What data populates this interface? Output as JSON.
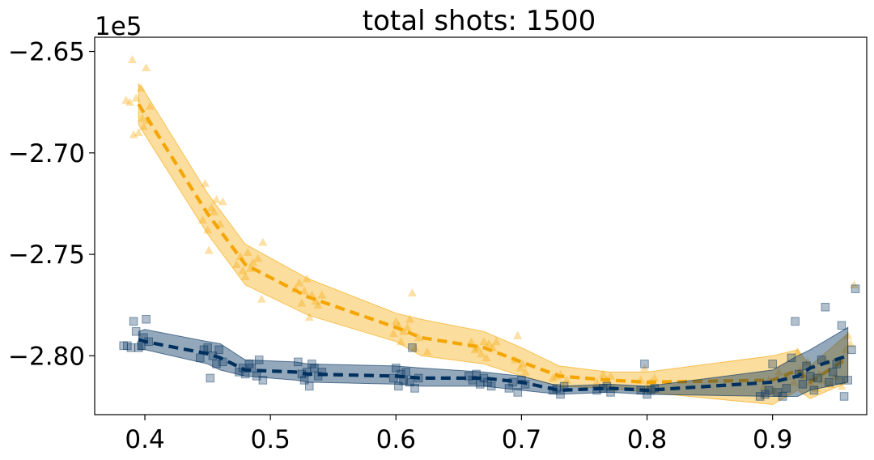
{
  "chart_data": {
    "type": "scatter",
    "title": "total shots: 1500",
    "y_offset_label": "1e5",
    "xlim": [
      0.36,
      0.975
    ],
    "ylim": [
      -2.829,
      -2.643
    ],
    "xticks": [
      0.4,
      0.5,
      0.6,
      0.7,
      0.8,
      0.9
    ],
    "xtick_labels": [
      "0.4",
      "0.5",
      "0.6",
      "0.7",
      "0.8",
      "0.9"
    ],
    "yticks": [
      -2.65,
      -2.7,
      -2.75,
      -2.8
    ],
    "ytick_labels": [
      "−2.65",
      "−2.70",
      "−2.75",
      "−2.80"
    ],
    "grid": false,
    "series": [
      {
        "marker": "triangle",
        "color": "#F5A500",
        "line_points": [
          [
            0.395,
            -2.676
          ],
          [
            0.4,
            -2.681
          ],
          [
            0.45,
            -2.73
          ],
          [
            0.48,
            -2.755
          ],
          [
            0.53,
            -2.771
          ],
          [
            0.6,
            -2.786
          ],
          [
            0.62,
            -2.791
          ],
          [
            0.67,
            -2.796
          ],
          [
            0.7,
            -2.803
          ],
          [
            0.73,
            -2.81
          ],
          [
            0.77,
            -2.812
          ],
          [
            0.8,
            -2.813
          ],
          [
            0.9,
            -2.812
          ],
          [
            0.92,
            -2.807
          ],
          [
            0.93,
            -2.813
          ],
          [
            0.96,
            -2.801
          ]
        ],
        "band_upper": [
          [
            0.395,
            -2.666
          ],
          [
            0.4,
            -2.67
          ],
          [
            0.45,
            -2.72
          ],
          [
            0.48,
            -2.745
          ],
          [
            0.53,
            -2.762
          ],
          [
            0.6,
            -2.779
          ],
          [
            0.62,
            -2.782
          ],
          [
            0.67,
            -2.788
          ],
          [
            0.7,
            -2.796
          ],
          [
            0.73,
            -2.805
          ],
          [
            0.77,
            -2.808
          ],
          [
            0.8,
            -2.808
          ],
          [
            0.9,
            -2.8
          ],
          [
            0.92,
            -2.797
          ],
          [
            0.93,
            -2.805
          ],
          [
            0.96,
            -2.789
          ]
        ],
        "band_lower": [
          [
            0.395,
            -2.686
          ],
          [
            0.4,
            -2.691
          ],
          [
            0.45,
            -2.74
          ],
          [
            0.48,
            -2.765
          ],
          [
            0.53,
            -2.78
          ],
          [
            0.6,
            -2.793
          ],
          [
            0.62,
            -2.8
          ],
          [
            0.67,
            -2.804
          ],
          [
            0.7,
            -2.81
          ],
          [
            0.73,
            -2.815
          ],
          [
            0.77,
            -2.816
          ],
          [
            0.8,
            -2.818
          ],
          [
            0.9,
            -2.824
          ],
          [
            0.92,
            -2.817
          ],
          [
            0.93,
            -2.821
          ],
          [
            0.96,
            -2.813
          ]
        ],
        "points": [
          [
            0.385,
            -2.674
          ],
          [
            0.388,
            -2.675
          ],
          [
            0.39,
            -2.654
          ],
          [
            0.391,
            -2.691
          ],
          [
            0.393,
            -2.673
          ],
          [
            0.395,
            -2.69
          ],
          [
            0.397,
            -2.668
          ],
          [
            0.398,
            -2.683
          ],
          [
            0.399,
            -2.687
          ],
          [
            0.401,
            -2.658
          ],
          [
            0.403,
            -2.684
          ],
          [
            0.404,
            -2.677
          ],
          [
            0.446,
            -2.733
          ],
          [
            0.448,
            -2.715
          ],
          [
            0.45,
            -2.738
          ],
          [
            0.451,
            -2.748
          ],
          [
            0.453,
            -2.727
          ],
          [
            0.455,
            -2.729
          ],
          [
            0.457,
            -2.723
          ],
          [
            0.46,
            -2.735
          ],
          [
            0.462,
            -2.724
          ],
          [
            0.473,
            -2.755
          ],
          [
            0.476,
            -2.751
          ],
          [
            0.478,
            -2.758
          ],
          [
            0.48,
            -2.761
          ],
          [
            0.482,
            -2.749
          ],
          [
            0.484,
            -2.757
          ],
          [
            0.486,
            -2.754
          ],
          [
            0.49,
            -2.752
          ],
          [
            0.493,
            -2.772
          ],
          [
            0.494,
            -2.744
          ],
          [
            0.52,
            -2.767
          ],
          [
            0.523,
            -2.764
          ],
          [
            0.525,
            -2.774
          ],
          [
            0.527,
            -2.768
          ],
          [
            0.529,
            -2.762
          ],
          [
            0.531,
            -2.781
          ],
          [
            0.533,
            -2.77
          ],
          [
            0.536,
            -2.773
          ],
          [
            0.538,
            -2.775
          ],
          [
            0.541,
            -2.77
          ],
          [
            0.598,
            -2.789
          ],
          [
            0.6,
            -2.783
          ],
          [
            0.602,
            -2.785
          ],
          [
            0.604,
            -2.793
          ],
          [
            0.606,
            -2.788
          ],
          [
            0.609,
            -2.786
          ],
          [
            0.611,
            -2.782
          ],
          [
            0.613,
            -2.769
          ],
          [
            0.615,
            -2.796
          ],
          [
            0.618,
            -2.791
          ],
          [
            0.625,
            -2.798
          ],
          [
            0.66,
            -2.793
          ],
          [
            0.663,
            -2.797
          ],
          [
            0.665,
            -2.796
          ],
          [
            0.668,
            -2.799
          ],
          [
            0.67,
            -2.793
          ],
          [
            0.672,
            -2.801
          ],
          [
            0.674,
            -2.794
          ],
          [
            0.677,
            -2.796
          ],
          [
            0.68,
            -2.793
          ],
          [
            0.695,
            -2.802
          ],
          [
            0.697,
            -2.79
          ],
          [
            0.699,
            -2.806
          ],
          [
            0.701,
            -2.804
          ],
          [
            0.703,
            -2.808
          ],
          [
            0.725,
            -2.811
          ],
          [
            0.728,
            -2.81
          ],
          [
            0.731,
            -2.809
          ],
          [
            0.733,
            -2.815
          ],
          [
            0.736,
            -2.812
          ],
          [
            0.76,
            -2.813
          ],
          [
            0.765,
            -2.809
          ],
          [
            0.768,
            -2.812
          ],
          [
            0.771,
            -2.81
          ],
          [
            0.773,
            -2.816
          ],
          [
            0.795,
            -2.812
          ],
          [
            0.798,
            -2.806
          ],
          [
            0.8,
            -2.815
          ],
          [
            0.803,
            -2.813
          ],
          [
            0.806,
            -2.811
          ],
          [
            0.893,
            -2.815
          ],
          [
            0.897,
            -2.812
          ],
          [
            0.901,
            -2.817
          ],
          [
            0.905,
            -2.808
          ],
          [
            0.912,
            -2.81
          ],
          [
            0.917,
            -2.813
          ],
          [
            0.92,
            -2.798
          ],
          [
            0.922,
            -2.807
          ],
          [
            0.925,
            -2.81
          ],
          [
            0.928,
            -2.803
          ],
          [
            0.93,
            -2.813
          ],
          [
            0.932,
            -2.811
          ],
          [
            0.935,
            -2.816
          ],
          [
            0.937,
            -2.809
          ],
          [
            0.94,
            -2.812
          ],
          [
            0.943,
            -2.803
          ],
          [
            0.946,
            -2.814
          ],
          [
            0.95,
            -2.81
          ],
          [
            0.953,
            -2.803
          ],
          [
            0.955,
            -2.815
          ],
          [
            0.958,
            -2.797
          ],
          [
            0.96,
            -2.79
          ],
          [
            0.962,
            -2.794
          ],
          [
            0.965,
            -2.765
          ]
        ]
      },
      {
        "marker": "square",
        "color": "#00305E",
        "line_points": [
          [
            0.395,
            -2.792
          ],
          [
            0.4,
            -2.793
          ],
          [
            0.45,
            -2.799
          ],
          [
            0.46,
            -2.801
          ],
          [
            0.48,
            -2.807
          ],
          [
            0.52,
            -2.808
          ],
          [
            0.53,
            -2.809
          ],
          [
            0.6,
            -2.81
          ],
          [
            0.62,
            -2.811
          ],
          [
            0.67,
            -2.811
          ],
          [
            0.7,
            -2.813
          ],
          [
            0.73,
            -2.817
          ],
          [
            0.77,
            -2.816
          ],
          [
            0.8,
            -2.817
          ],
          [
            0.9,
            -2.813
          ],
          [
            0.92,
            -2.81
          ],
          [
            0.93,
            -2.806
          ],
          [
            0.96,
            -2.8
          ]
        ],
        "band_upper": [
          [
            0.395,
            -2.788
          ],
          [
            0.4,
            -2.787
          ],
          [
            0.45,
            -2.793
          ],
          [
            0.46,
            -2.794
          ],
          [
            0.48,
            -2.802
          ],
          [
            0.52,
            -2.803
          ],
          [
            0.53,
            -2.804
          ],
          [
            0.6,
            -2.805
          ],
          [
            0.62,
            -2.806
          ],
          [
            0.67,
            -2.808
          ],
          [
            0.7,
            -2.81
          ],
          [
            0.73,
            -2.815
          ],
          [
            0.77,
            -2.814
          ],
          [
            0.8,
            -2.815
          ],
          [
            0.9,
            -2.807
          ],
          [
            0.92,
            -2.8
          ],
          [
            0.93,
            -2.797
          ],
          [
            0.96,
            -2.786
          ]
        ],
        "band_lower": [
          [
            0.395,
            -2.797
          ],
          [
            0.4,
            -2.797
          ],
          [
            0.45,
            -2.804
          ],
          [
            0.46,
            -2.807
          ],
          [
            0.48,
            -2.81
          ],
          [
            0.52,
            -2.812
          ],
          [
            0.53,
            -2.813
          ],
          [
            0.6,
            -2.814
          ],
          [
            0.62,
            -2.815
          ],
          [
            0.67,
            -2.815
          ],
          [
            0.7,
            -2.817
          ],
          [
            0.73,
            -2.819
          ],
          [
            0.77,
            -2.818
          ],
          [
            0.8,
            -2.819
          ],
          [
            0.9,
            -2.82
          ],
          [
            0.92,
            -2.82
          ],
          [
            0.93,
            -2.817
          ],
          [
            0.96,
            -2.813
          ]
        ],
        "points": [
          [
            0.383,
            -2.795
          ],
          [
            0.386,
            -2.795
          ],
          [
            0.389,
            -2.796
          ],
          [
            0.391,
            -2.783
          ],
          [
            0.393,
            -2.788
          ],
          [
            0.395,
            -2.796
          ],
          [
            0.397,
            -2.795
          ],
          [
            0.399,
            -2.791
          ],
          [
            0.401,
            -2.782
          ],
          [
            0.403,
            -2.793
          ],
          [
            0.444,
            -2.801
          ],
          [
            0.447,
            -2.797
          ],
          [
            0.45,
            -2.796
          ],
          [
            0.452,
            -2.811
          ],
          [
            0.454,
            -2.8
          ],
          [
            0.457,
            -2.804
          ],
          [
            0.459,
            -2.797
          ],
          [
            0.462,
            -2.803
          ],
          [
            0.475,
            -2.808
          ],
          [
            0.478,
            -2.806
          ],
          [
            0.48,
            -2.809
          ],
          [
            0.483,
            -2.804
          ],
          [
            0.485,
            -2.806
          ],
          [
            0.489,
            -2.81
          ],
          [
            0.491,
            -2.802
          ],
          [
            0.494,
            -2.812
          ],
          [
            0.522,
            -2.803
          ],
          [
            0.525,
            -2.809
          ],
          [
            0.527,
            -2.812
          ],
          [
            0.529,
            -2.808
          ],
          [
            0.531,
            -2.815
          ],
          [
            0.533,
            -2.804
          ],
          [
            0.535,
            -2.806
          ],
          [
            0.538,
            -2.81
          ],
          [
            0.541,
            -2.808
          ],
          [
            0.598,
            -2.811
          ],
          [
            0.6,
            -2.806
          ],
          [
            0.602,
            -2.815
          ],
          [
            0.604,
            -2.809
          ],
          [
            0.606,
            -2.812
          ],
          [
            0.608,
            -2.808
          ],
          [
            0.611,
            -2.813
          ],
          [
            0.613,
            -2.796
          ],
          [
            0.615,
            -2.816
          ],
          [
            0.618,
            -2.811
          ],
          [
            0.658,
            -2.81
          ],
          [
            0.661,
            -2.812
          ],
          [
            0.664,
            -2.809
          ],
          [
            0.667,
            -2.814
          ],
          [
            0.67,
            -2.811
          ],
          [
            0.673,
            -2.813
          ],
          [
            0.676,
            -2.815
          ],
          [
            0.69,
            -2.816
          ],
          [
            0.693,
            -2.813
          ],
          [
            0.697,
            -2.818
          ],
          [
            0.7,
            -2.812
          ],
          [
            0.703,
            -2.814
          ],
          [
            0.725,
            -2.817
          ],
          [
            0.728,
            -2.816
          ],
          [
            0.731,
            -2.819
          ],
          [
            0.734,
            -2.815
          ],
          [
            0.76,
            -2.817
          ],
          [
            0.765,
            -2.816
          ],
          [
            0.768,
            -2.815
          ],
          [
            0.771,
            -2.818
          ],
          [
            0.795,
            -2.817
          ],
          [
            0.798,
            -2.804
          ],
          [
            0.8,
            -2.819
          ],
          [
            0.803,
            -2.817
          ],
          [
            0.806,
            -2.816
          ],
          [
            0.89,
            -2.82
          ],
          [
            0.894,
            -2.819
          ],
          [
            0.897,
            -2.817
          ],
          [
            0.9,
            -2.804
          ],
          [
            0.904,
            -2.818
          ],
          [
            0.908,
            -2.82
          ],
          [
            0.911,
            -2.816
          ],
          [
            0.915,
            -2.801
          ],
          [
            0.918,
            -2.783
          ],
          [
            0.921,
            -2.809
          ],
          [
            0.924,
            -2.814
          ],
          [
            0.927,
            -2.805
          ],
          [
            0.93,
            -2.81
          ],
          [
            0.933,
            -2.817
          ],
          [
            0.936,
            -2.811
          ],
          [
            0.939,
            -2.802
          ],
          [
            0.942,
            -2.776
          ],
          [
            0.945,
            -2.813
          ],
          [
            0.948,
            -2.808
          ],
          [
            0.951,
            -2.804
          ],
          [
            0.953,
            -2.812
          ],
          [
            0.955,
            -2.785
          ],
          [
            0.957,
            -2.82
          ],
          [
            0.96,
            -2.812
          ],
          [
            0.963,
            -2.797
          ],
          [
            0.966,
            -2.767
          ]
        ]
      }
    ]
  }
}
